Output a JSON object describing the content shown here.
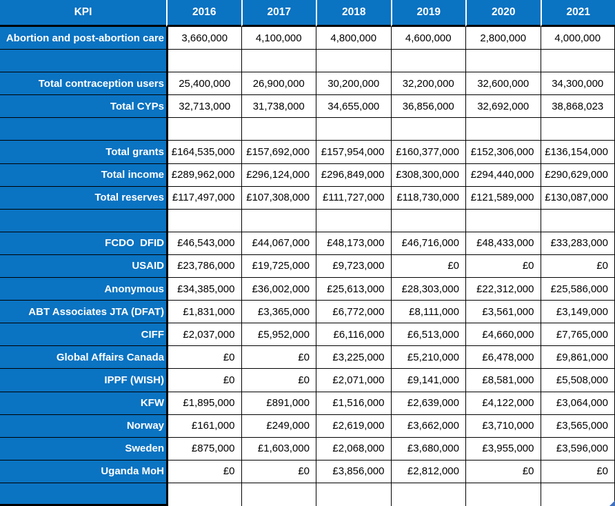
{
  "table": {
    "header": {
      "kpi": "KPI",
      "years": [
        "2016",
        "2017",
        "2018",
        "2019",
        "2020",
        "2021"
      ]
    },
    "rows": [
      {
        "label": "Abortion and post-abortion care",
        "format": "plain",
        "values": [
          "3,660,000",
          "4,100,000",
          "4,800,000",
          "4,600,000",
          "2,800,000",
          "4,000,000"
        ]
      },
      {
        "label": "",
        "format": "empty",
        "values": [
          "",
          "",
          "",
          "",
          "",
          ""
        ]
      },
      {
        "label": "Total contraception users",
        "format": "plain",
        "values": [
          "25,400,000",
          "26,900,000",
          "30,200,000",
          "32,200,000",
          "32,600,000",
          "34,300,000"
        ]
      },
      {
        "label": "Total CYPs",
        "format": "plain",
        "values": [
          "32,713,000",
          "31,738,000",
          "34,655,000",
          "36,856,000",
          "32,692,000",
          "38,868,023"
        ]
      },
      {
        "label": "",
        "format": "empty",
        "values": [
          "",
          "",
          "",
          "",
          "",
          ""
        ]
      },
      {
        "label": "Total grants",
        "format": "currency",
        "values": [
          "£164,535,000",
          "£157,692,000",
          "£157,954,000",
          "£160,377,000",
          "£152,306,000",
          "£136,154,000"
        ]
      },
      {
        "label": "Total income",
        "format": "currency",
        "values": [
          "£289,962,000",
          "£296,124,000",
          "£296,849,000",
          "£308,300,000",
          "£294,440,000",
          "£290,629,000"
        ]
      },
      {
        "label": "Total reserves",
        "format": "currency",
        "values": [
          "£117,497,000",
          "£107,308,000",
          "£111,727,000",
          "£118,730,000",
          "£121,589,000",
          "£130,087,000"
        ]
      },
      {
        "label": "",
        "format": "empty",
        "values": [
          "",
          "",
          "",
          "",
          "",
          ""
        ]
      },
      {
        "label": "FCDO  DFID",
        "format": "currency",
        "values": [
          "£46,543,000",
          "£44,067,000",
          "£48,173,000",
          "£46,716,000",
          "£48,433,000",
          "£33,283,000"
        ]
      },
      {
        "label": "USAID",
        "format": "currency",
        "values": [
          "£23,786,000",
          "£19,725,000",
          "£9,723,000",
          "£0",
          "£0",
          "£0"
        ]
      },
      {
        "label": "Anonymous",
        "format": "currency",
        "values": [
          "£34,385,000",
          "£36,002,000",
          "£25,613,000",
          "£28,303,000",
          "£22,312,000",
          "£25,586,000"
        ]
      },
      {
        "label": "ABT Associates JTA (DFAT)",
        "format": "currency",
        "values": [
          "£1,831,000",
          "£3,365,000",
          "£6,772,000",
          "£8,111,000",
          "£3,561,000",
          "£3,149,000"
        ]
      },
      {
        "label": "CIFF",
        "format": "currency",
        "values": [
          "£2,037,000",
          "£5,952,000",
          "£6,116,000",
          "£6,513,000",
          "£4,660,000",
          "£7,765,000"
        ]
      },
      {
        "label": "Global Affairs Canada",
        "format": "currency",
        "values": [
          "£0",
          "£0",
          "£3,225,000",
          "£5,210,000",
          "£6,478,000",
          "£9,861,000"
        ]
      },
      {
        "label": "IPPF (WISH)",
        "format": "currency",
        "values": [
          "£0",
          "£0",
          "£2,071,000",
          "£9,141,000",
          "£8,581,000",
          "£5,508,000"
        ]
      },
      {
        "label": "KFW",
        "format": "currency",
        "values": [
          "£1,895,000",
          "£891,000",
          "£1,516,000",
          "£2,639,000",
          "£4,122,000",
          "£3,064,000"
        ]
      },
      {
        "label": "Norway",
        "format": "currency",
        "values": [
          "£161,000",
          "£249,000",
          "£2,619,000",
          "£3,662,000",
          "£3,710,000",
          "£3,565,000"
        ]
      },
      {
        "label": "Sweden",
        "format": "currency",
        "values": [
          "£875,000",
          "£1,603,000",
          "£2,068,000",
          "£3,680,000",
          "£3,955,000",
          "£3,596,000"
        ]
      },
      {
        "label": "Uganda MoH",
        "format": "currency",
        "values": [
          "£0",
          "£0",
          "£3,856,000",
          "£2,812,000",
          "£0",
          "£0"
        ]
      },
      {
        "label": "",
        "format": "empty",
        "values": [
          "",
          "",
          "",
          "",
          "",
          ""
        ]
      }
    ]
  },
  "colors": {
    "header_blue": "#0a73c2",
    "grid_black": "#000000",
    "cell_white": "#ffffff",
    "fill_handle_blue": "#3f6fbf"
  }
}
